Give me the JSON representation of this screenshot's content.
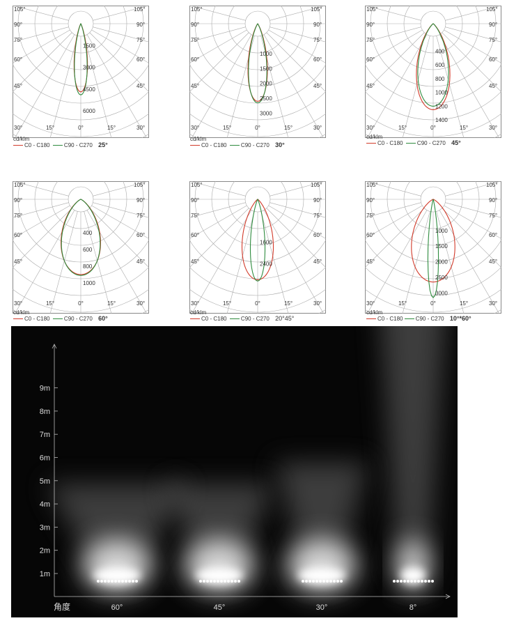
{
  "chart_data": [
    {
      "type": "polar",
      "beam_label": "25°",
      "unit": "cd/klm",
      "legend": [
        {
          "name": "C0 - C180",
          "color": "#d23a2a"
        },
        {
          "name": "C90 - C270",
          "color": "#2e8b3e"
        }
      ],
      "angle_labels": [
        "105°",
        "90°",
        "75°",
        "60°",
        "45°",
        "30°",
        "15°",
        "0°",
        "15°",
        "30°",
        "45°",
        "60°",
        "75°",
        "90°",
        "105°"
      ],
      "radial_labels": [
        "1500",
        "3000",
        "4500",
        "6000"
      ],
      "radial_values": [
        1500,
        3000,
        4500,
        6000
      ],
      "rmax": 7200,
      "series": [
        {
          "name": "C0 - C180",
          "half_angle": 11,
          "peak": 4700
        },
        {
          "name": "C90 - C270",
          "half_angle": 10,
          "peak": 4900
        }
      ]
    },
    {
      "type": "polar",
      "beam_label": "30°",
      "unit": "cd/klm",
      "legend": [
        {
          "name": "C0 - C180",
          "color": "#d23a2a"
        },
        {
          "name": "C90 - C270",
          "color": "#2e8b3e"
        }
      ],
      "angle_labels": [
        "105°",
        "90°",
        "75°",
        "60°",
        "45°",
        "30°",
        "15°",
        "0°",
        "15°",
        "30°",
        "45°",
        "60°",
        "75°",
        "90°",
        "105°"
      ],
      "radial_labels": [
        "1000",
        "1500",
        "2000",
        "2500",
        "3000"
      ],
      "radial_values": [
        1000,
        1500,
        2000,
        2500,
        3000
      ],
      "rmax": 3500,
      "series": [
        {
          "name": "C0 - C180",
          "half_angle": 14,
          "peak": 2600
        },
        {
          "name": "C90 - C270",
          "half_angle": 13,
          "peak": 2650
        }
      ]
    },
    {
      "type": "polar",
      "beam_label": "45°",
      "unit": "cd/klm",
      "legend": [
        {
          "name": "C0 - C180",
          "color": "#d23a2a"
        },
        {
          "name": "C90 - C270",
          "color": "#2e8b3e"
        }
      ],
      "angle_labels": [
        "105°",
        "90°",
        "75°",
        "60°",
        "45°",
        "30°",
        "15°",
        "0°",
        "15°",
        "30°",
        "45°",
        "60°",
        "75°",
        "90°",
        "105°"
      ],
      "radial_labels": [
        "400",
        "600",
        "800",
        "1000",
        "1200",
        "1400"
      ],
      "radial_values": [
        400,
        600,
        800,
        1000,
        1200,
        1400
      ],
      "rmax": 1520,
      "series": [
        {
          "name": "C0 - C180",
          "half_angle": 22,
          "peak": 1250
        },
        {
          "name": "C90 - C270",
          "half_angle": 21,
          "peak": 1200
        }
      ]
    },
    {
      "type": "polar",
      "beam_label": "60°",
      "unit": "cd/klm",
      "legend": [
        {
          "name": "C0 - C180",
          "color": "#d23a2a"
        },
        {
          "name": "C90 - C270",
          "color": "#2e8b3e"
        }
      ],
      "angle_labels": [
        "105°",
        "90°",
        "75°",
        "60°",
        "45°",
        "30°",
        "15°",
        "0°",
        "15°",
        "30°",
        "45°",
        "60°",
        "75°",
        "90°",
        "105°"
      ],
      "radial_labels": [
        "400",
        "600",
        "800",
        "1000"
      ],
      "radial_values": [
        400,
        600,
        800,
        1000
      ],
      "rmax": 1250,
      "series": [
        {
          "name": "C0 - C180",
          "half_angle": 30,
          "peak": 900
        },
        {
          "name": "C90 - C270",
          "half_angle": 29,
          "peak": 910
        }
      ]
    },
    {
      "type": "polar",
      "beam_label": "20°45°",
      "unit": "cd/klm",
      "legend": [
        {
          "name": "C0 - C180",
          "color": "#d23a2a"
        },
        {
          "name": "C90 - C270",
          "color": "#2e8b3e"
        }
      ],
      "angle_labels": [
        "105°",
        "90°",
        "75°",
        "60°",
        "45°",
        "30°",
        "15°",
        "0°",
        "15°",
        "30°",
        "45°",
        "60°",
        "75°",
        "90°",
        "105°"
      ],
      "radial_labels": [
        "1600",
        "2400"
      ],
      "radial_values": [
        1600,
        2400
      ],
      "rmax": 3900,
      "series": [
        {
          "name": "C0 - C180",
          "half_angle": 22,
          "peak": 3000
        },
        {
          "name": "C90 - C270",
          "half_angle": 10,
          "peak": 3050
        }
      ]
    },
    {
      "type": "polar",
      "beam_label": "10°*60°",
      "unit": "cd/klm",
      "legend": [
        {
          "name": "C0 - C180",
          "color": "#d23a2a"
        },
        {
          "name": "C90 - C270",
          "color": "#2e8b3e"
        }
      ],
      "angle_labels": [
        "105°",
        "90°",
        "75°",
        "60°",
        "45°",
        "30°",
        "15°",
        "0°",
        "15°",
        "30°",
        "45°",
        "60°",
        "75°",
        "90°",
        "105°"
      ],
      "radial_labels": [
        "1000",
        "1500",
        "2000",
        "2500",
        "3000"
      ],
      "radial_values": [
        1000,
        1500,
        2000,
        2500,
        3000
      ],
      "rmax": 3350,
      "series": [
        {
          "name": "C0 - C180",
          "half_angle": 30,
          "peak": 2650
        },
        {
          "name": "C90 - C270",
          "half_angle": 6,
          "peak": 3150
        }
      ]
    }
  ],
  "photo": {
    "y_ticks": [
      "1m",
      "2m",
      "3m",
      "4m",
      "5m",
      "6m",
      "7m",
      "8m",
      "9m"
    ],
    "y_values": [
      1,
      2,
      3,
      4,
      5,
      6,
      7,
      8,
      9
    ],
    "x_title": "角度",
    "beams": [
      {
        "label": "60°",
        "angle": 60
      },
      {
        "label": "45°",
        "angle": 45
      },
      {
        "label": "30°",
        "angle": 30
      },
      {
        "label": "8°",
        "angle": 8
      }
    ]
  }
}
